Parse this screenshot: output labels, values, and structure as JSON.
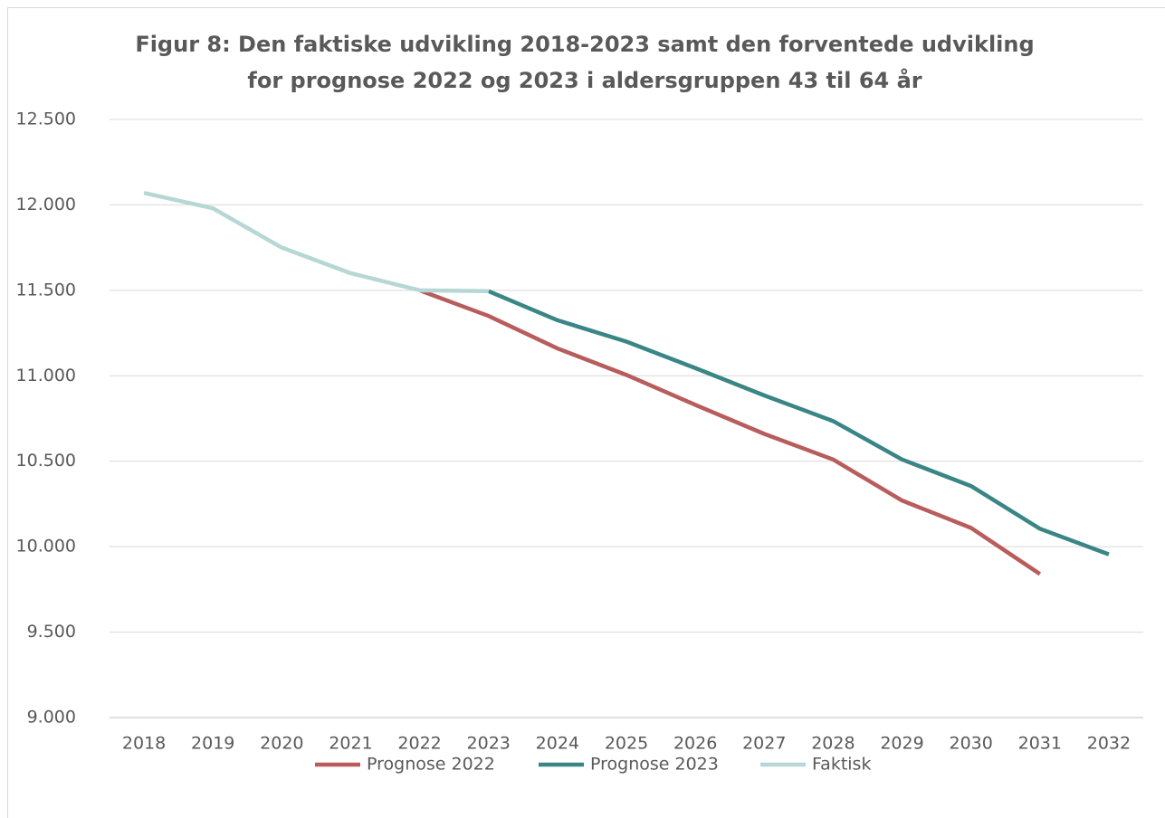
{
  "chart_data": {
    "type": "line",
    "title": [
      "Figur 8: Den faktiske udvikling 2018-2023 samt den forventede udvikling",
      "for prognose 2022 og 2023 i aldersgruppen 43 til 64 år"
    ],
    "categories": [
      "2018",
      "2019",
      "2020",
      "2021",
      "2022",
      "2023",
      "2024",
      "2025",
      "2026",
      "2027",
      "2028",
      "2029",
      "2030",
      "2031",
      "2032"
    ],
    "series": [
      {
        "name": "Prognose 2022",
        "color": "#b85c5c",
        "values": [
          null,
          null,
          null,
          null,
          11500,
          11350,
          11160,
          11005,
          10830,
          10660,
          10510,
          10270,
          10110,
          9840,
          null
        ]
      },
      {
        "name": "Prognose 2023",
        "color": "#3a8585",
        "values": [
          null,
          null,
          null,
          null,
          null,
          11495,
          11325,
          11200,
          11045,
          10885,
          10735,
          10510,
          10355,
          10105,
          9955
        ]
      },
      {
        "name": "Faktisk",
        "color": "#b6d7d5",
        "values": [
          12070,
          11980,
          11750,
          11600,
          11500,
          11495,
          null,
          null,
          null,
          null,
          null,
          null,
          null,
          null,
          null
        ]
      }
    ],
    "ylim": [
      9000,
      12500
    ],
    "yticks": [
      {
        "value": 9000,
        "label": "9.000"
      },
      {
        "value": 9500,
        "label": "9.500"
      },
      {
        "value": 10000,
        "label": "10.000"
      },
      {
        "value": 10500,
        "label": "10.500"
      },
      {
        "value": 11000,
        "label": "11.000"
      },
      {
        "value": 11500,
        "label": "11.500"
      },
      {
        "value": 12000,
        "label": "12.000"
      },
      {
        "value": 12500,
        "label": "12.500"
      }
    ],
    "grid": true,
    "legend": "bottom"
  }
}
